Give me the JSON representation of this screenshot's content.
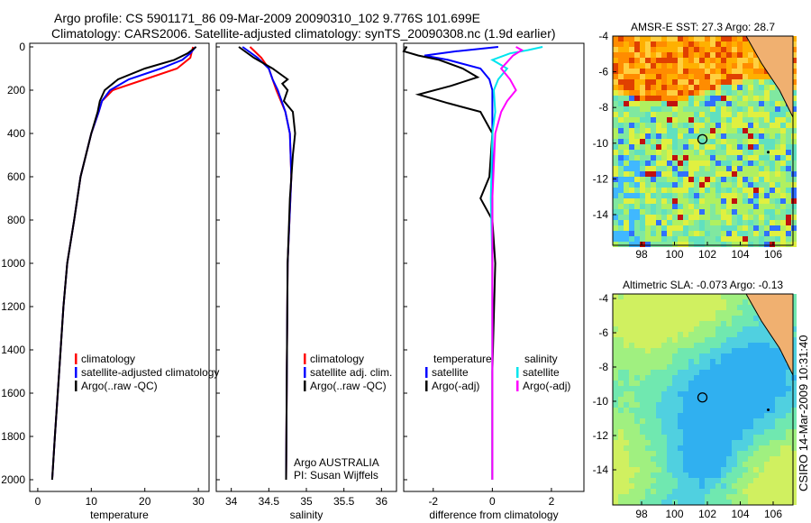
{
  "title": {
    "line1": "Argo profile: CS 5901171_86 09-Mar-2009 20090310_102 9.776S 101.699E",
    "line2": "Climatology: CARS2006. Satellite-adjusted climatology: synTS_20090308.nc (1.9d earlier)"
  },
  "side_label": "CSIRO 14-Mar-2009 10:31:40",
  "colors": {
    "climatology": "#ff0000",
    "satellite": "#0000ff",
    "argo": "#000000",
    "sal_satellite": "#00e5ee",
    "sal_argo": "#ff00ff"
  },
  "chart_data": [
    {
      "type": "line",
      "name": "temperature",
      "xlabel": "temperature",
      "xlim": [
        -1.5,
        32
      ],
      "ylim": [
        2050,
        0
      ],
      "xticks": [
        "0",
        "10",
        "20",
        "30"
      ],
      "xtick_values": [
        0,
        10,
        20,
        30
      ],
      "yticks": [
        "0",
        "200",
        "400",
        "600",
        "800",
        "1000",
        "1200",
        "1400",
        "1600",
        "1800",
        "2000"
      ],
      "legend": [
        "climatology",
        "satellite-adjusted climatology",
        "Argo(..raw -QC)"
      ],
      "series": [
        {
          "name": "climatology",
          "color": "#ff0000",
          "depth": [
            0,
            50,
            100,
            150,
            200,
            250,
            300,
            400,
            600,
            800,
            1000,
            1200,
            1500,
            1800,
            2000
          ],
          "values": [
            29,
            28.5,
            26,
            20,
            14,
            12,
            11.4,
            10,
            8,
            6.8,
            5.5,
            4.8,
            4,
            3.2,
            2.7
          ]
        },
        {
          "name": "satellite-adjusted climatology",
          "color": "#0000ff",
          "depth": [
            0,
            30,
            60,
            100,
            150,
            200,
            250,
            300,
            400,
            600,
            800,
            1000,
            1200,
            1500,
            1800,
            2000
          ],
          "values": [
            29.5,
            28.5,
            27,
            23,
            17,
            13.5,
            12,
            11.4,
            10,
            8,
            6.8,
            5.5,
            4.8,
            4,
            3.2,
            2.7
          ]
        },
        {
          "name": "Argo(..raw -QC)",
          "color": "#000000",
          "depth": [
            0,
            30,
            60,
            100,
            150,
            200,
            250,
            300,
            400,
            600,
            800,
            1000,
            1200,
            1500,
            1800,
            2000
          ],
          "values": [
            29.6,
            28,
            25.5,
            20,
            15,
            12.5,
            11.6,
            11.2,
            10,
            8,
            6.8,
            5.5,
            4.8,
            4,
            3.2,
            2.7
          ]
        }
      ]
    },
    {
      "type": "line",
      "name": "salinity",
      "xlabel": "salinity",
      "xlim": [
        33.8,
        36.2
      ],
      "ylim": [
        2050,
        0
      ],
      "xticks": [
        "34",
        "34.5",
        "35",
        "35.5",
        "36"
      ],
      "xtick_values": [
        34,
        34.5,
        35,
        35.5,
        36
      ],
      "legend": [
        "climatology",
        "satellite adj. clim.",
        "Argo(..raw -QC)"
      ],
      "annotation": [
        "Argo AUSTRALIA",
        "PI: Susan Wijffels"
      ],
      "series": [
        {
          "name": "climatology",
          "color": "#ff0000",
          "depth": [
            0,
            50,
            100,
            150,
            200,
            300,
            400,
            600,
            1000,
            1500,
            2000
          ],
          "values": [
            34.25,
            34.4,
            34.5,
            34.55,
            34.6,
            34.72,
            34.78,
            34.8,
            34.75,
            34.74,
            34.73
          ]
        },
        {
          "name": "satellite adj. clim.",
          "color": "#0000ff",
          "depth": [
            0,
            50,
            100,
            150,
            200,
            300,
            400,
            600,
            1000,
            1500,
            2000
          ],
          "values": [
            34.15,
            34.35,
            34.5,
            34.55,
            34.62,
            34.72,
            34.78,
            34.8,
            34.75,
            34.74,
            34.73
          ]
        },
        {
          "name": "Argo(..raw -QC)",
          "color": "#000000",
          "depth": [
            0,
            50,
            100,
            150,
            170,
            200,
            250,
            300,
            400,
            500,
            700,
            1000,
            1500,
            2000
          ],
          "values": [
            34.1,
            34.3,
            34.55,
            34.75,
            34.68,
            34.75,
            34.7,
            34.82,
            34.85,
            34.82,
            34.78,
            34.75,
            34.74,
            34.73
          ]
        }
      ]
    },
    {
      "type": "line",
      "name": "difference",
      "xlabel": "difference from climatology",
      "xlim": [
        -3,
        3.1
      ],
      "ylim": [
        2050,
        0
      ],
      "xticks": [
        "-2",
        "0",
        "2"
      ],
      "xtick_values": [
        -2,
        0,
        2
      ],
      "legend_headers": [
        "temperature",
        "salinity"
      ],
      "legend": [
        "satellite",
        "Argo(-adj)",
        "satellite",
        "Argo(-adj)"
      ],
      "series": [
        {
          "name": "temperature satellite",
          "color": "#0000ff",
          "depth": [
            0,
            20,
            40,
            60,
            100,
            150,
            200,
            300,
            500,
            1000,
            2000
          ],
          "values": [
            0.2,
            -1.2,
            -2.3,
            -1.5,
            -0.4,
            -0.1,
            0,
            0,
            0,
            0,
            0
          ]
        },
        {
          "name": "temperature Argo(-adj)",
          "color": "#000000",
          "depth": [
            0,
            20,
            40,
            60,
            100,
            140,
            180,
            220,
            260,
            300,
            400,
            600,
            700,
            800,
            1000,
            1500,
            2000
          ],
          "values": [
            -2.9,
            -3,
            -2.5,
            -1.8,
            -1,
            -0.5,
            -1.4,
            -2.5,
            -1.5,
            -0.4,
            0,
            -0.1,
            -0.4,
            0,
            0.1,
            0,
            0
          ]
        },
        {
          "name": "salinity satellite",
          "color": "#00e5ee",
          "depth": [
            0,
            15,
            30,
            60,
            100,
            150,
            200,
            300,
            400,
            700,
            1000,
            2000
          ],
          "values": [
            1.7,
            1.2,
            0.6,
            0,
            0.5,
            0.2,
            0.05,
            0.1,
            0,
            -0.05,
            0,
            0
          ]
        },
        {
          "name": "salinity Argo(-adj)",
          "color": "#ff00ff",
          "depth": [
            0,
            15,
            40,
            70,
            100,
            150,
            200,
            250,
            300,
            400,
            700,
            1000,
            2000
          ],
          "values": [
            0.8,
            1.0,
            0.7,
            0.5,
            0.3,
            0.6,
            0.8,
            0.5,
            0.3,
            0.1,
            0,
            0,
            0
          ]
        }
      ]
    },
    {
      "type": "heatmap",
      "name": "sst-map",
      "title": "AMSR-E SST: 27.3 Argo: 28.7",
      "xticks": [
        "98",
        "100",
        "102",
        "104",
        "106"
      ],
      "yticks": [
        "-4",
        "-6",
        "-8",
        "-10",
        "-12",
        "-14"
      ],
      "marker": {
        "lon": 101.699,
        "lat": -9.776
      }
    },
    {
      "type": "heatmap",
      "name": "sla-map",
      "title": "Altimetric SLA: -0.073 Argo: -0.13",
      "xticks": [
        "98",
        "100",
        "102",
        "104",
        "106"
      ],
      "yticks": [
        "-4",
        "-6",
        "-8",
        "-10",
        "-12",
        "-14"
      ],
      "marker": {
        "lon": 101.699,
        "lat": -9.776
      }
    }
  ]
}
